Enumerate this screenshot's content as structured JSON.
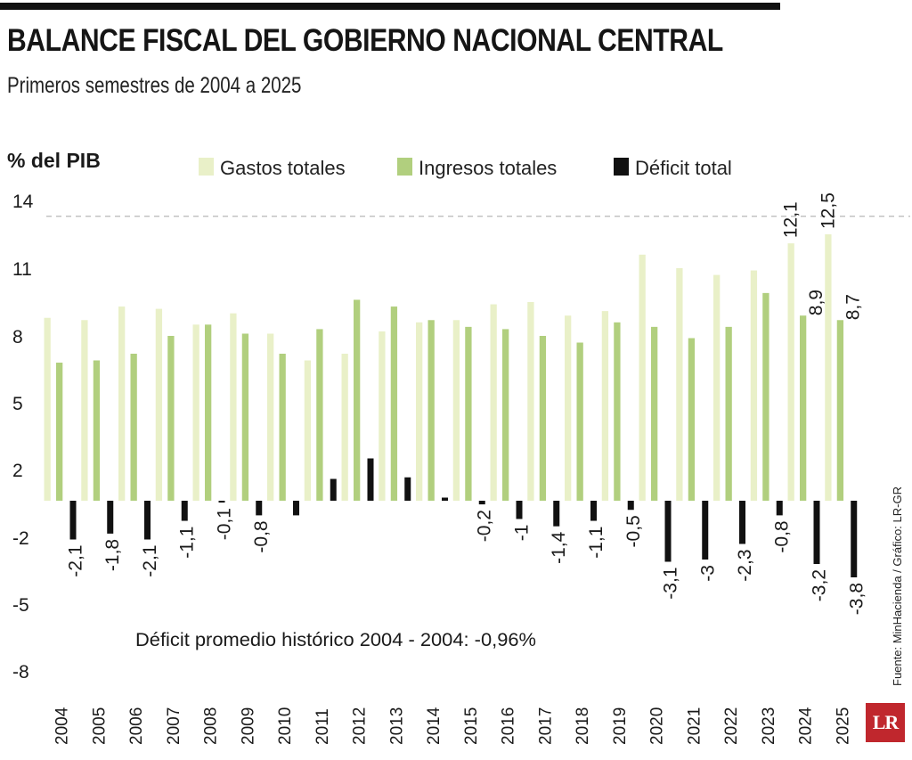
{
  "header": {
    "title": "BALANCE FISCAL DEL GOBIERNO NACIONAL CENTRAL",
    "subtitle": "Primeros semestres de 2004 a 2025"
  },
  "footer": {
    "source": "Fuente: MinHacienda / Gráfico: LR-GR",
    "logo": "LR"
  },
  "annotation": "Déficit promedio histórico 2004 - 2004: -0,96%",
  "colors": {
    "gastos": "#e9f0c8",
    "ingresos": "#b1cf7e",
    "deficit": "#111111",
    "reference_line": "#b8b8b8"
  },
  "chart_data": {
    "type": "bar",
    "ylabel": "% del PIB",
    "ylim": [
      -8,
      14
    ],
    "yticks": [
      14,
      11,
      8,
      5,
      2,
      -2,
      -5,
      -8
    ],
    "reference_line": 13.3,
    "legend_position": "top",
    "categories": [
      "2004",
      "2005",
      "2006",
      "2007",
      "2008",
      "2009",
      "2010",
      "2011",
      "2012",
      "2013",
      "2014",
      "2015",
      "2016",
      "2017",
      "2018",
      "2019",
      "2020",
      "2021",
      "2022",
      "2023",
      "2024",
      "2025"
    ],
    "series": [
      {
        "name": "Gastos totales",
        "values": [
          8.8,
          8.7,
          9.3,
          9.2,
          8.5,
          9.0,
          8.1,
          6.9,
          7.2,
          8.2,
          8.6,
          8.7,
          9.4,
          9.5,
          8.9,
          9.1,
          11.6,
          11.0,
          10.7,
          10.9,
          12.1,
          12.5
        ]
      },
      {
        "name": "Ingresos totales",
        "values": [
          6.8,
          6.9,
          7.2,
          8.0,
          8.5,
          8.1,
          7.2,
          8.3,
          9.6,
          9.3,
          8.7,
          8.4,
          8.3,
          8.0,
          7.7,
          8.6,
          8.4,
          7.9,
          8.4,
          9.9,
          8.9,
          8.7
        ]
      },
      {
        "name": "Déficit total",
        "values": [
          -2.1,
          -1.8,
          -2.1,
          -1.1,
          -0.1,
          -0.8,
          -0.8,
          1.4,
          2.5,
          1.5,
          0.2,
          -0.2,
          -1.0,
          -1.4,
          -1.1,
          -0.5,
          -3.1,
          -3.0,
          -2.3,
          -0.8,
          -3.2,
          -3.8
        ]
      }
    ],
    "data_labels": {
      "deficit": [
        "-2,1",
        "-1,8",
        "-2,1",
        "-1,1",
        "-0,1",
        "-0,8",
        "",
        "",
        "",
        "",
        "",
        "-0,2",
        "-1",
        "-1,4",
        "-1,1",
        "-0,5",
        "-3,1",
        "-3",
        "-2,3",
        "-0,8",
        "-3,2",
        "-3,8"
      ],
      "gastos": [
        "",
        "",
        "",
        "",
        "",
        "",
        "",
        "",
        "",
        "",
        "",
        "",
        "",
        "",
        "",
        "",
        "",
        "",
        "",
        "",
        "12,1",
        "12,5"
      ],
      "ingresos": [
        "",
        "",
        "",
        "",
        "",
        "",
        "",
        "",
        "",
        "",
        "",
        "",
        "",
        "",
        "",
        "",
        "",
        "",
        "",
        "",
        "8,9",
        "8,7"
      ]
    }
  }
}
